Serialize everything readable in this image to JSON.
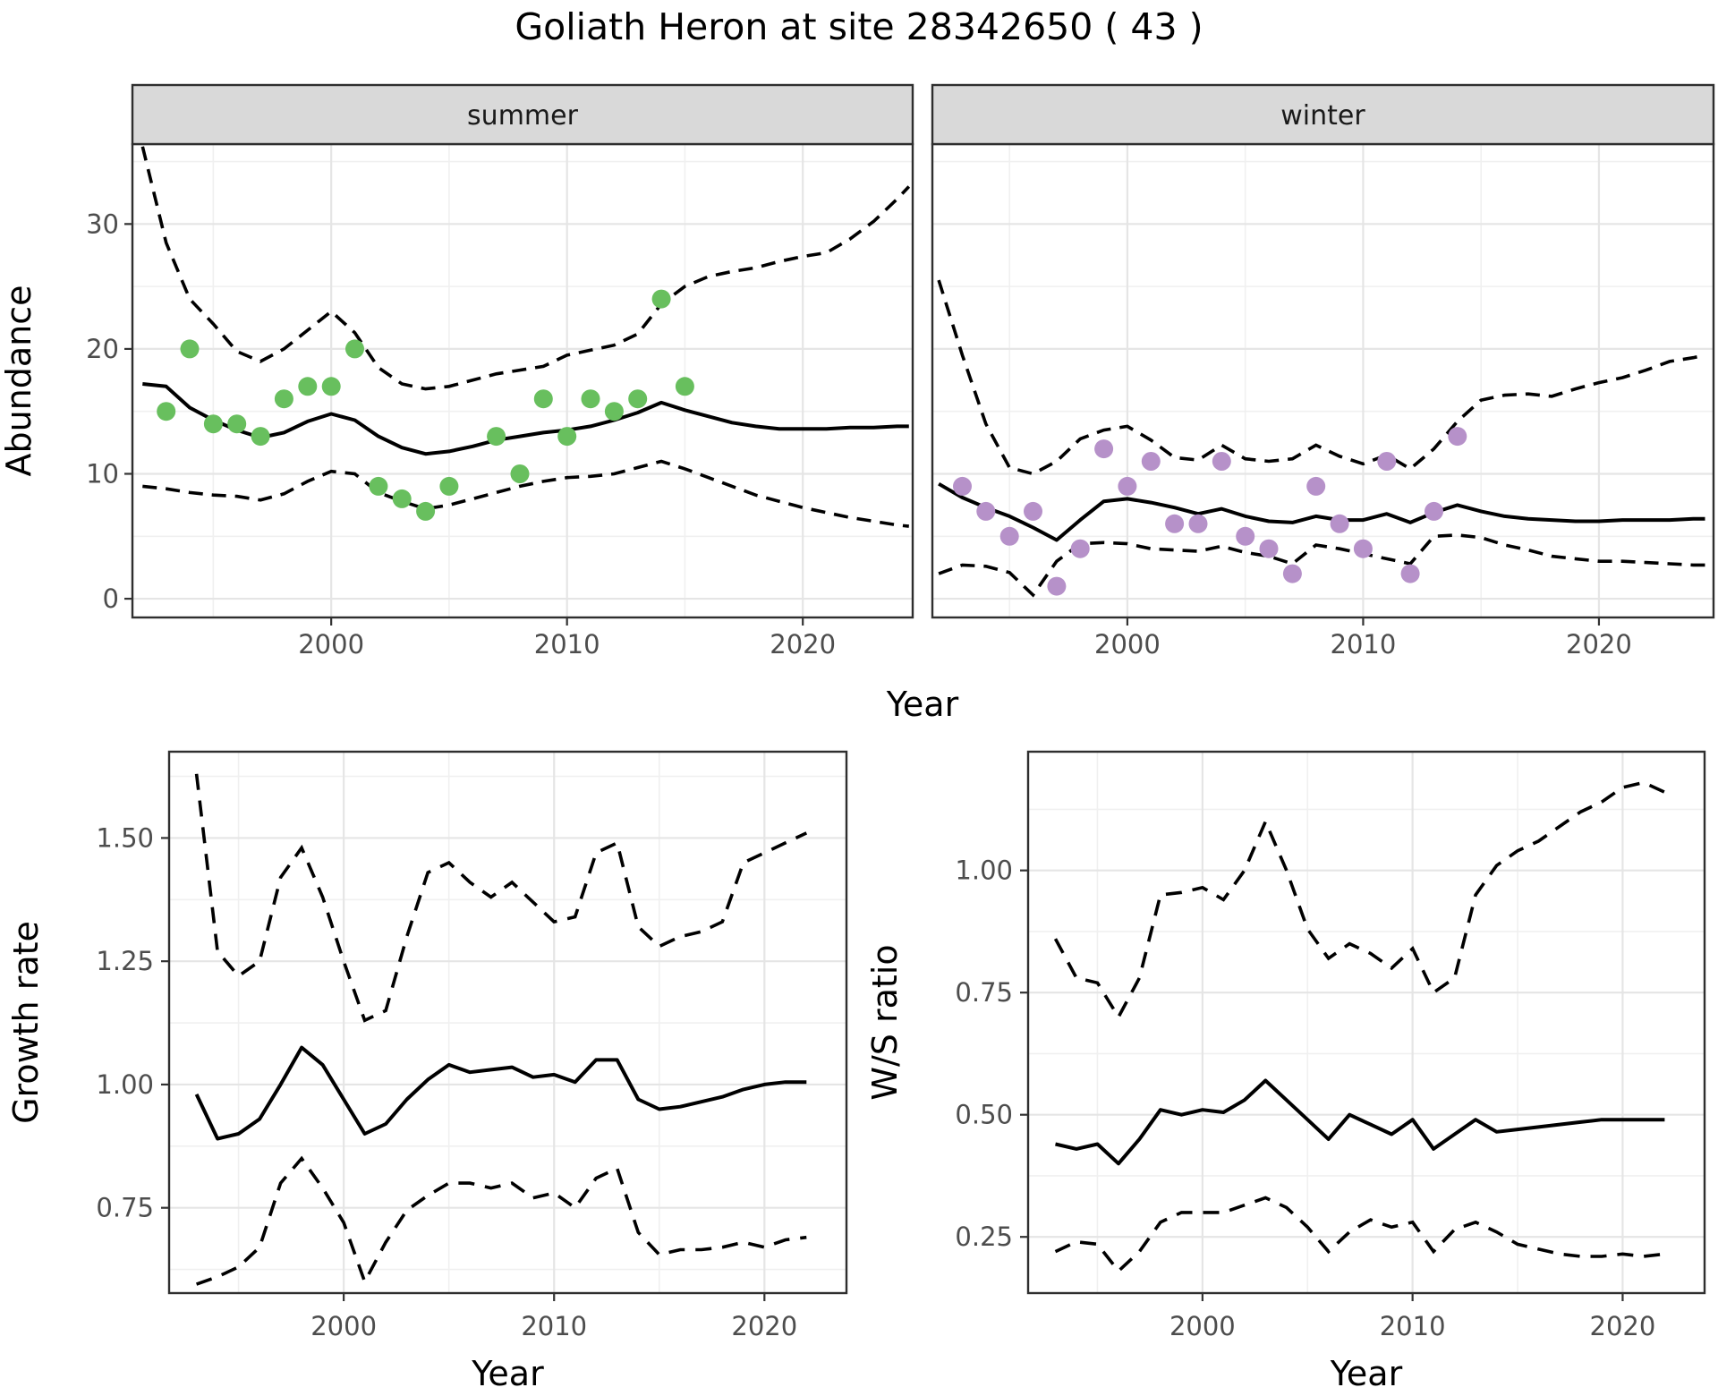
{
  "title": "Goliath Heron at site 28342650 ( 43 )",
  "shared_xlabel": "Year",
  "colors": {
    "summer_point": "#68bf5e",
    "winter_point": "#b691c9",
    "line": "#000000",
    "strip_bg": "#d9d9d9",
    "panel_border": "#2e2e2e",
    "grid_major": "#e5e5e5",
    "grid_minor": "#f0f0f0",
    "tick_text": "#4d4d4d",
    "axis_title": "#000000"
  },
  "chart_data": [
    {
      "id": "abundance_summer",
      "type": "line+scatter",
      "facet_label": "summer",
      "ylabel": "Abundance",
      "xlabel": null,
      "xlim": [
        1991.57,
        2024.66
      ],
      "ylim": [
        -1.5,
        36.4
      ],
      "xticks": [
        2000,
        2010,
        2020
      ],
      "xtick_labels": [
        "2000",
        "2010",
        "2020"
      ],
      "yticks": [
        0,
        10,
        20,
        30
      ],
      "ytick_labels": [
        "0",
        "10",
        "20",
        "30"
      ],
      "points": {
        "years": [
          1993,
          1994,
          1995,
          1996,
          1997,
          1998,
          1999,
          2000,
          2001,
          2002,
          2003,
          2004,
          2005,
          2007,
          2008,
          2009,
          2010,
          2011,
          2012,
          2013,
          2014,
          2015
        ],
        "values": [
          15,
          20,
          14,
          14,
          13,
          16,
          17,
          17,
          20,
          9,
          8,
          7,
          9,
          13,
          10,
          16,
          13,
          16,
          15,
          16,
          24,
          17
        ]
      },
      "fit": {
        "years": [
          1992,
          1993,
          1994,
          1995,
          1996,
          1997,
          1998,
          1999,
          2000,
          2001,
          2002,
          2003,
          2004,
          2005,
          2006,
          2007,
          2008,
          2009,
          2010,
          2011,
          2012,
          2013,
          2014,
          2015,
          2016,
          2017,
          2018,
          2019,
          2020,
          2021,
          2022,
          2023,
          2024,
          2024.5
        ],
        "values": [
          17.2,
          17.0,
          15.3,
          14.3,
          13.5,
          12.9,
          13.3,
          14.2,
          14.8,
          14.3,
          13.0,
          12.1,
          11.6,
          11.8,
          12.2,
          12.7,
          13.0,
          13.3,
          13.5,
          13.8,
          14.3,
          14.9,
          15.7,
          15.1,
          14.6,
          14.1,
          13.8,
          13.6,
          13.6,
          13.6,
          13.7,
          13.7,
          13.8,
          13.8
        ]
      },
      "upper": {
        "years": [
          1992,
          1993,
          1994,
          1995,
          1996,
          1997,
          1998,
          1999,
          2000,
          2001,
          2002,
          2003,
          2004,
          2005,
          2006,
          2007,
          2008,
          2009,
          2010,
          2011,
          2012,
          2013,
          2014,
          2015,
          2016,
          2017,
          2018,
          2019,
          2020,
          2021,
          2022,
          2023,
          2024,
          2024.5
        ],
        "values": [
          36.2,
          28.5,
          24.0,
          22.0,
          19.8,
          19.0,
          20.0,
          21.5,
          23.0,
          21.3,
          18.5,
          17.2,
          16.8,
          17.0,
          17.5,
          18.0,
          18.3,
          18.6,
          19.5,
          19.9,
          20.3,
          21.2,
          23.6,
          25.0,
          25.8,
          26.2,
          26.5,
          27.0,
          27.4,
          27.7,
          28.8,
          30.2,
          32.0,
          33.0
        ]
      },
      "lower": {
        "years": [
          1992,
          1993,
          1994,
          1995,
          1996,
          1997,
          1998,
          1999,
          2000,
          2001,
          2002,
          2003,
          2004,
          2005,
          2006,
          2007,
          2008,
          2009,
          2010,
          2011,
          2012,
          2013,
          2014,
          2015,
          2016,
          2017,
          2018,
          2019,
          2020,
          2021,
          2022,
          2023,
          2024,
          2024.5
        ],
        "values": [
          9.0,
          8.8,
          8.5,
          8.3,
          8.2,
          7.9,
          8.4,
          9.4,
          10.2,
          10.0,
          8.5,
          7.8,
          7.2,
          7.5,
          8.0,
          8.5,
          9.0,
          9.4,
          9.7,
          9.8,
          10.0,
          10.5,
          11.0,
          10.4,
          9.7,
          9.0,
          8.3,
          7.8,
          7.3,
          6.9,
          6.5,
          6.2,
          5.9,
          5.8
        ]
      }
    },
    {
      "id": "abundance_winter",
      "type": "line+scatter",
      "facet_label": "winter",
      "ylabel": null,
      "xlabel": null,
      "xlim": [
        1991.73,
        2024.86
      ],
      "ylim": [
        -1.5,
        36.4
      ],
      "xticks": [
        2000,
        2010,
        2020
      ],
      "xtick_labels": [
        "2000",
        "2010",
        "2020"
      ],
      "yticks": [
        0,
        10,
        20,
        30
      ],
      "ytick_labels": [
        "0",
        "10",
        "20",
        "30"
      ],
      "points": {
        "years": [
          1993,
          1994,
          1995,
          1996,
          1997,
          1998,
          1999,
          2000,
          2001,
          2002,
          2003,
          2004,
          2005,
          2006,
          2007,
          2008,
          2009,
          2010,
          2011,
          2012,
          2013,
          2014
        ],
        "values": [
          9,
          7,
          5,
          7,
          1,
          4,
          12,
          9,
          11,
          6,
          6,
          11,
          5,
          4,
          2,
          9,
          6,
          4,
          11,
          2,
          7,
          13
        ]
      },
      "fit": {
        "years": [
          1992,
          1993,
          1994,
          1995,
          1996,
          1997,
          1998,
          1999,
          2000,
          2001,
          2002,
          2003,
          2004,
          2005,
          2006,
          2007,
          2008,
          2009,
          2010,
          2011,
          2012,
          2013,
          2014,
          2015,
          2016,
          2017,
          2018,
          2019,
          2020,
          2021,
          2022,
          2023,
          2024,
          2024.5
        ],
        "values": [
          9.2,
          8.1,
          7.3,
          6.6,
          5.7,
          4.7,
          6.3,
          7.8,
          8.0,
          7.7,
          7.3,
          6.8,
          7.2,
          6.6,
          6.2,
          6.1,
          6.6,
          6.3,
          6.3,
          6.8,
          6.1,
          6.9,
          7.5,
          7.0,
          6.6,
          6.4,
          6.3,
          6.2,
          6.2,
          6.3,
          6.3,
          6.3,
          6.4,
          6.4
        ]
      },
      "upper": {
        "years": [
          1992,
          1993,
          1994,
          1995,
          1996,
          1997,
          1998,
          1999,
          2000,
          2001,
          2002,
          2003,
          2004,
          2005,
          2006,
          2007,
          2008,
          2009,
          2010,
          2011,
          2012,
          2013,
          2014,
          2015,
          2016,
          2017,
          2018,
          2019,
          2020,
          2021,
          2022,
          2023,
          2024,
          2024.5
        ],
        "values": [
          25.5,
          19.5,
          14.0,
          10.5,
          10.0,
          11.0,
          12.8,
          13.5,
          13.8,
          12.7,
          11.3,
          11.1,
          12.3,
          11.2,
          11.0,
          11.2,
          12.3,
          11.4,
          10.8,
          11.5,
          10.4,
          12.0,
          14.2,
          15.9,
          16.3,
          16.4,
          16.2,
          16.8,
          17.3,
          17.7,
          18.3,
          19.0,
          19.3,
          19.5
        ]
      },
      "lower": {
        "years": [
          1992,
          1993,
          1994,
          1995,
          1996,
          1997,
          1998,
          1999,
          2000,
          2001,
          2002,
          2003,
          2004,
          2005,
          2006,
          2007,
          2008,
          2009,
          2010,
          2011,
          2012,
          2013,
          2014,
          2015,
          2016,
          2017,
          2018,
          2019,
          2020,
          2021,
          2022,
          2023,
          2024,
          2024.5
        ],
        "values": [
          2.0,
          2.7,
          2.6,
          2.1,
          0.3,
          3.0,
          4.4,
          4.5,
          4.4,
          4.0,
          3.9,
          3.8,
          4.2,
          3.7,
          3.4,
          2.8,
          4.3,
          4.0,
          3.6,
          3.2,
          2.8,
          5.0,
          5.1,
          4.9,
          4.3,
          3.9,
          3.4,
          3.2,
          3.0,
          3.0,
          2.9,
          2.8,
          2.7,
          2.7
        ]
      }
    },
    {
      "id": "growth_rate",
      "type": "line",
      "facet_label": null,
      "ylabel": "Growth rate",
      "xlabel": "Year",
      "xlim": [
        1991.7,
        2023.9
      ],
      "ylim": [
        0.577,
        1.675
      ],
      "xticks": [
        2000,
        2010,
        2020
      ],
      "xtick_labels": [
        "2000",
        "2010",
        "2020"
      ],
      "yticks": [
        0.75,
        1.0,
        1.25,
        1.5
      ],
      "ytick_labels": [
        "0.75",
        "1.00",
        "1.25",
        "1.50"
      ],
      "points": null,
      "fit": {
        "years": [
          1993,
          1994,
          1995,
          1996,
          1997,
          1998,
          1999,
          2000,
          2001,
          2002,
          2003,
          2004,
          2005,
          2006,
          2007,
          2008,
          2009,
          2010,
          2011,
          2012,
          2013,
          2014,
          2015,
          2016,
          2017,
          2018,
          2019,
          2020,
          2021,
          2022
        ],
        "values": [
          0.98,
          0.89,
          0.9,
          0.93,
          1.0,
          1.075,
          1.04,
          0.97,
          0.9,
          0.92,
          0.97,
          1.01,
          1.04,
          1.025,
          1.03,
          1.035,
          1.015,
          1.02,
          1.005,
          1.05,
          1.05,
          0.97,
          0.95,
          0.955,
          0.965,
          0.975,
          0.99,
          1.0,
          1.005,
          1.005
        ]
      },
      "upper": {
        "years": [
          1993,
          1994,
          1995,
          1996,
          1997,
          1998,
          1999,
          2000,
          2001,
          2002,
          2003,
          2004,
          2005,
          2006,
          2007,
          2008,
          2009,
          2010,
          2011,
          2012,
          2013,
          2014,
          2015,
          2016,
          2017,
          2018,
          2019,
          2020,
          2021,
          2022
        ],
        "values": [
          1.63,
          1.27,
          1.22,
          1.25,
          1.42,
          1.48,
          1.38,
          1.25,
          1.13,
          1.15,
          1.3,
          1.43,
          1.45,
          1.41,
          1.38,
          1.41,
          1.37,
          1.33,
          1.34,
          1.47,
          1.49,
          1.32,
          1.28,
          1.3,
          1.31,
          1.33,
          1.45,
          1.47,
          1.49,
          1.51
        ]
      },
      "lower": {
        "years": [
          1993,
          1994,
          1995,
          1996,
          1997,
          1998,
          1999,
          2000,
          2001,
          2002,
          2003,
          2004,
          2005,
          2006,
          2007,
          2008,
          2009,
          2010,
          2011,
          2012,
          2013,
          2014,
          2015,
          2016,
          2017,
          2018,
          2019,
          2020,
          2021,
          2022
        ],
        "values": [
          0.595,
          0.61,
          0.63,
          0.67,
          0.8,
          0.85,
          0.79,
          0.72,
          0.6,
          0.68,
          0.745,
          0.775,
          0.8,
          0.8,
          0.79,
          0.8,
          0.77,
          0.78,
          0.75,
          0.81,
          0.83,
          0.7,
          0.655,
          0.665,
          0.665,
          0.67,
          0.68,
          0.67,
          0.685,
          0.69
        ]
      }
    },
    {
      "id": "ws_ratio",
      "type": "line",
      "facet_label": null,
      "ylabel": "W/S ratio",
      "xlabel": "Year",
      "xlim": [
        1991.7,
        2023.9
      ],
      "ylim": [
        0.135,
        1.243
      ],
      "xticks": [
        2000,
        2010,
        2020
      ],
      "xtick_labels": [
        "2000",
        "2010",
        "2020"
      ],
      "yticks": [
        0.25,
        0.5,
        0.75,
        1.0
      ],
      "ytick_labels": [
        "0.25",
        "0.50",
        "0.75",
        "1.00"
      ],
      "points": null,
      "fit": {
        "years": [
          1993,
          1994,
          1995,
          1996,
          1997,
          1998,
          1999,
          2000,
          2001,
          2002,
          2003,
          2004,
          2005,
          2006,
          2007,
          2008,
          2009,
          2010,
          2011,
          2012,
          2013,
          2014,
          2015,
          2016,
          2017,
          2018,
          2019,
          2020,
          2021,
          2022
        ],
        "values": [
          0.44,
          0.43,
          0.44,
          0.4,
          0.45,
          0.51,
          0.5,
          0.51,
          0.505,
          0.53,
          0.57,
          0.53,
          0.49,
          0.45,
          0.5,
          0.48,
          0.46,
          0.49,
          0.43,
          0.46,
          0.49,
          0.465,
          0.47,
          0.475,
          0.48,
          0.485,
          0.49,
          0.49,
          0.49,
          0.49
        ]
      },
      "upper": {
        "years": [
          1993,
          1994,
          1995,
          1996,
          1997,
          1998,
          1999,
          2000,
          2001,
          2002,
          2003,
          2004,
          2005,
          2006,
          2007,
          2008,
          2009,
          2010,
          2011,
          2012,
          2013,
          2014,
          2015,
          2016,
          2017,
          2018,
          2019,
          2020,
          2021,
          2022
        ],
        "values": [
          0.86,
          0.78,
          0.77,
          0.7,
          0.78,
          0.95,
          0.955,
          0.965,
          0.94,
          1.0,
          1.1,
          1.0,
          0.88,
          0.82,
          0.85,
          0.83,
          0.8,
          0.84,
          0.75,
          0.78,
          0.95,
          1.01,
          1.04,
          1.06,
          1.09,
          1.12,
          1.14,
          1.17,
          1.18,
          1.16
        ]
      },
      "lower": {
        "years": [
          1993,
          1994,
          1995,
          1996,
          1997,
          1998,
          1999,
          2000,
          2001,
          2002,
          2003,
          2004,
          2005,
          2006,
          2007,
          2008,
          2009,
          2010,
          2011,
          2012,
          2013,
          2014,
          2015,
          2016,
          2017,
          2018,
          2019,
          2020,
          2021,
          2022
        ],
        "values": [
          0.22,
          0.24,
          0.235,
          0.18,
          0.22,
          0.28,
          0.3,
          0.3,
          0.3,
          0.315,
          0.33,
          0.31,
          0.27,
          0.22,
          0.26,
          0.285,
          0.27,
          0.28,
          0.22,
          0.265,
          0.28,
          0.26,
          0.235,
          0.225,
          0.215,
          0.21,
          0.21,
          0.215,
          0.21,
          0.215
        ]
      }
    }
  ]
}
